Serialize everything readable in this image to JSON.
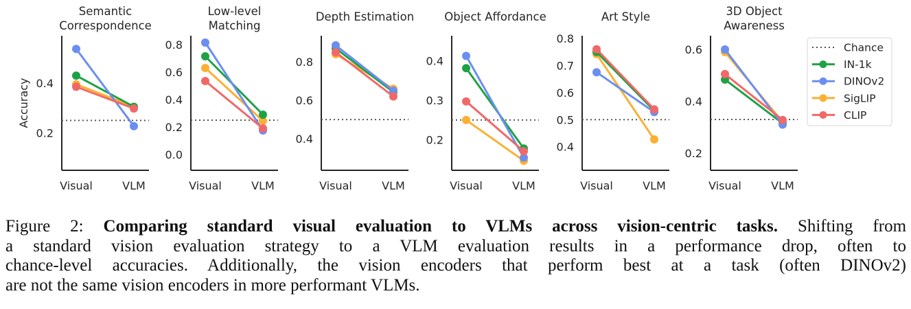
{
  "chart_data": {
    "type": "line",
    "ylabel": "Accuracy",
    "categories": [
      "Visual",
      "VLM"
    ],
    "colors": {
      "IN-1k": "#1fa245",
      "DINOv2": "#6b8ff0",
      "SigLIP": "#fbb033",
      "CLIP": "#f16868",
      "Chance": "#555555"
    },
    "legend": {
      "placement": "right",
      "entries": [
        "Chance",
        "IN-1k",
        "DINOv2",
        "SigLIP",
        "CLIP"
      ]
    },
    "grid": false,
    "panels": [
      {
        "title": [
          "Semantic",
          "Correspondence"
        ],
        "ylim": [
          0.05,
          0.59
        ],
        "yticks": [
          "0.2",
          "0.4"
        ],
        "ytick_values": [
          0.2,
          0.4
        ],
        "chance": 0.25,
        "series": [
          {
            "name": "IN-1k",
            "values": [
              0.43,
              0.305
            ]
          },
          {
            "name": "DINOv2",
            "values": [
              0.537,
              0.227
            ]
          },
          {
            "name": "SigLIP",
            "values": [
              0.395,
              0.305
            ]
          },
          {
            "name": "CLIP",
            "values": [
              0.385,
              0.298
            ]
          }
        ]
      },
      {
        "title": [
          "Low-level",
          "Matching"
        ],
        "ylim": [
          -0.115,
          0.865
        ],
        "yticks": [
          "0.0",
          "0.2",
          "0.4",
          "0.6",
          "0.8"
        ],
        "ytick_values": [
          0.0,
          0.2,
          0.4,
          0.6,
          0.8
        ],
        "chance": 0.25,
        "series": [
          {
            "name": "IN-1k",
            "values": [
              0.715,
              0.29
            ]
          },
          {
            "name": "DINOv2",
            "values": [
              0.815,
              0.175
            ]
          },
          {
            "name": "SigLIP",
            "values": [
              0.63,
              0.245
            ]
          },
          {
            "name": "CLIP",
            "values": [
              0.535,
              0.19
            ]
          }
        ]
      },
      {
        "title": [
          "Depth Estimation"
        ],
        "ylim": [
          0.236,
          0.936
        ],
        "yticks": [
          "0.4",
          "0.6",
          "0.8"
        ],
        "ytick_values": [
          0.4,
          0.6,
          0.8
        ],
        "chance": 0.5,
        "series": [
          {
            "name": "IN-1k",
            "values": [
              0.87,
              0.643
            ]
          },
          {
            "name": "DINOv2",
            "values": [
              0.886,
              0.65
            ]
          },
          {
            "name": "SigLIP",
            "values": [
              0.84,
              0.66
            ]
          },
          {
            "name": "CLIP",
            "values": [
              0.85,
              0.62
            ]
          }
        ]
      },
      {
        "title": [
          "Object Affordance"
        ],
        "ylim": [
          0.123,
          0.463
        ],
        "yticks": [
          "0.2",
          "0.3",
          "0.4"
        ],
        "ytick_values": [
          0.2,
          0.3,
          0.4
        ],
        "chance": 0.25,
        "series": [
          {
            "name": "IN-1k",
            "values": [
              0.381,
              0.178
            ]
          },
          {
            "name": "DINOv2",
            "values": [
              0.412,
              0.155
            ]
          },
          {
            "name": "SigLIP",
            "values": [
              0.25,
              0.147
            ]
          },
          {
            "name": "CLIP",
            "values": [
              0.297,
              0.171
            ]
          }
        ]
      },
      {
        "title": [
          "Art Style"
        ],
        "ylim": [
          0.313,
          0.81
        ],
        "yticks": [
          "0.4",
          "0.5",
          "0.6",
          "0.7",
          "0.8"
        ],
        "ytick_values": [
          0.4,
          0.5,
          0.6,
          0.7,
          0.8
        ],
        "chance": 0.5,
        "series": [
          {
            "name": "IN-1k",
            "values": [
              0.75,
              0.533
            ]
          },
          {
            "name": "DINOv2",
            "values": [
              0.675,
              0.528
            ]
          },
          {
            "name": "SigLIP",
            "values": [
              0.742,
              0.427
            ]
          },
          {
            "name": "CLIP",
            "values": [
              0.76,
              0.538
            ]
          }
        ]
      },
      {
        "title": [
          "3D Object",
          "Awareness"
        ],
        "ylim": [
          0.134,
          0.653
        ],
        "yticks": [
          "0.2",
          "0.4",
          "0.6"
        ],
        "ytick_values": [
          0.2,
          0.4,
          0.6
        ],
        "chance": 0.33,
        "series": [
          {
            "name": "IN-1k",
            "values": [
              0.484,
              0.315
            ]
          },
          {
            "name": "DINOv2",
            "values": [
              0.6,
              0.31
            ]
          },
          {
            "name": "SigLIP",
            "values": [
              0.59,
              0.32
            ]
          },
          {
            "name": "CLIP",
            "values": [
              0.505,
              0.328
            ]
          }
        ]
      }
    ]
  },
  "caption": {
    "label": "Figure 2: ",
    "bold": "Comparing standard visual evaluation to VLMs across vision-centric tasks.",
    "line1_rest": " Shifting from",
    "line2": "a standard vision evaluation strategy to a VLM evaluation results in a performance drop, often to",
    "line3": "chance-level accuracies. Additionally, the vision encoders that perform best at a task (often DINOv2)",
    "line4": "are not the same vision encoders in more performant VLMs."
  }
}
